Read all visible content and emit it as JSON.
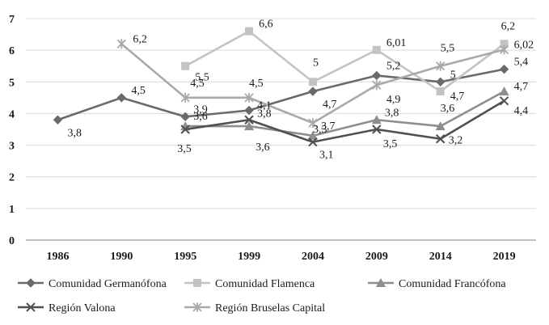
{
  "chart_data": {
    "type": "line",
    "title": "",
    "xlabel": "",
    "ylabel": "",
    "ylim": [
      0,
      7
    ],
    "yticks": [
      "0",
      "1",
      "2",
      "3",
      "4",
      "5",
      "6",
      "7"
    ],
    "categories": [
      "1986",
      "1990",
      "1995",
      "1999",
      "2004",
      "2009",
      "2014",
      "2019"
    ],
    "grid": true,
    "legend_position": "bottom",
    "series": [
      {
        "name": "Comunidad Germanófona",
        "color": "#6a6a6a",
        "marker": "diamond",
        "values": [
          3.8,
          4.5,
          3.9,
          4.1,
          4.7,
          5.2,
          5.0,
          5.4
        ],
        "labels": [
          "3,8",
          "4,5",
          "3,9",
          "4,1",
          "4,7",
          "5,2",
          "5",
          "5,4"
        ]
      },
      {
        "name": "Comunidad Flamenca",
        "color": "#c3c3c3",
        "marker": "square",
        "values": [
          null,
          null,
          5.5,
          6.6,
          5.0,
          6.01,
          4.7,
          6.2
        ],
        "labels": [
          "",
          "",
          "5,5",
          "6,6",
          "5",
          "6,01",
          "4,7",
          "6,2"
        ]
      },
      {
        "name": "Comunidad Francófona",
        "color": "#8e8e8e",
        "marker": "triangle",
        "values": [
          null,
          null,
          3.6,
          3.6,
          3.3,
          3.8,
          3.6,
          4.7
        ],
        "labels": [
          "",
          "",
          "3,6",
          "3,6",
          "3,3",
          "3,8",
          "3,6",
          "4,7"
        ]
      },
      {
        "name": "Región Valona",
        "color": "#505050",
        "marker": "x",
        "values": [
          null,
          null,
          3.5,
          3.8,
          3.1,
          3.5,
          3.2,
          4.4
        ],
        "labels": [
          "",
          "",
          "3,5",
          "3,8",
          "3,1",
          "3,5",
          "3,2",
          "4,4"
        ]
      },
      {
        "name": "Región Bruselas Capital",
        "color": "#a9a9a9",
        "marker": "star",
        "values": [
          null,
          6.2,
          4.5,
          4.5,
          3.7,
          4.9,
          5.5,
          6.02
        ],
        "labels": [
          "",
          "6,2",
          "4,5",
          "4,5",
          "3,7",
          "4,9",
          "5,5",
          "6,02"
        ]
      }
    ]
  }
}
